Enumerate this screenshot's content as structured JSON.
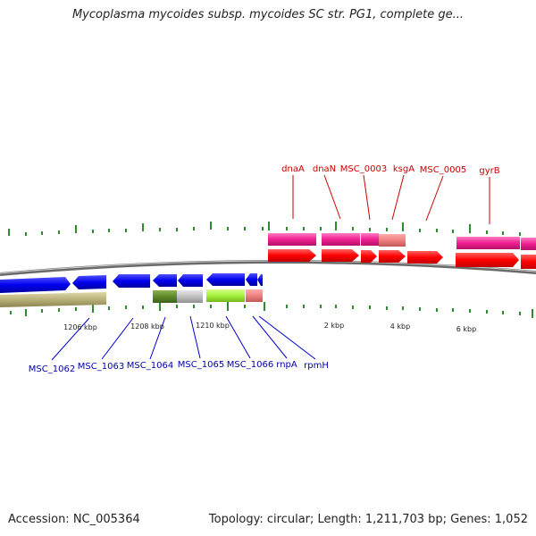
{
  "title": "Mycoplasma mycoides subsp. mycoides SC str. PG1, complete ge...",
  "footer": {
    "accession": "Accession: NC_005364",
    "topology": "Topology: circular; Length: 1,211,703 bp; Genes: 1,052"
  },
  "scale_labels": [
    "1206 kbp",
    "1208 kbp",
    "1210 kbp",
    "2 kbp",
    "4 kbp",
    "6 kbp"
  ],
  "genes_top": [
    "dnaA",
    "dnaN",
    "MSC_0003",
    "ksgA",
    "MSC_0005",
    "gyrB"
  ],
  "genes_bottom": [
    "MSC_1062",
    "MSC_1063",
    "MSC_1064",
    "MSC_1065",
    "MSC_1066",
    "rnpA",
    "rpmH"
  ],
  "colors": {
    "forward_cds": "#ff0000",
    "reverse_cds": "#0000ee",
    "top_label": "#cc0000",
    "bottom_label": "#0000aa",
    "tick": "#338833",
    "backbone": "#777777"
  }
}
